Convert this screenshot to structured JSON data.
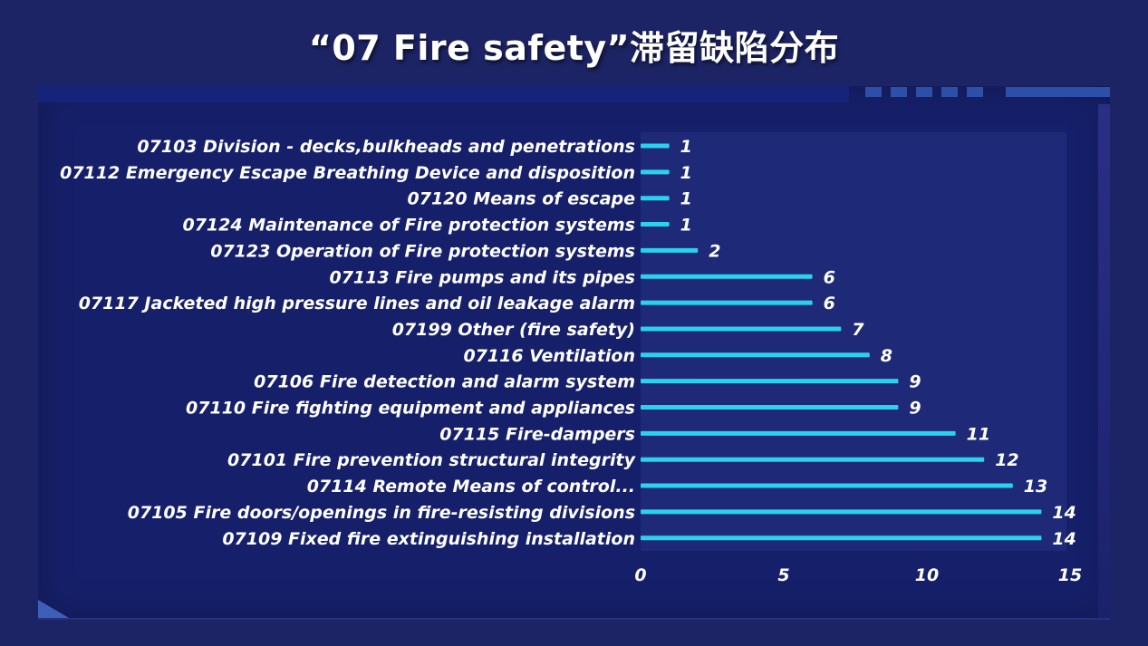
{
  "page": {
    "title": "“07 Fire safety”滞留缺陷分布"
  },
  "colors": {
    "background": "#1d2465",
    "bar": "#2ad2f0",
    "text": "#ffffff"
  },
  "chart_data": {
    "type": "bar",
    "orientation": "horizontal",
    "title": "“07 Fire safety”滞留缺陷分布",
    "categories": [
      "07103 Division - decks,bulkheads and penetrations",
      "07112 Emergency Escape Breathing Device and disposition",
      "07120 Means of escape",
      "07124 Maintenance of Fire protection systems",
      "07123 Operation of Fire protection systems",
      "07113 Fire pumps and its pipes",
      "07117 Jacketed high pressure lines and oil leakage alarm",
      "07199 Other (fire safety)",
      "07116 Ventilation",
      "07106 Fire detection and alarm system",
      "07110 Fire fighting equipment and appliances",
      "07115 Fire-dampers",
      "07101 Fire prevention structural integrity",
      "07114 Remote Means of control...",
      "07105 Fire doors/openings in fire-resisting divisions",
      "07109 Fixed fire extinguishing installation"
    ],
    "values": [
      1,
      1,
      1,
      1,
      2,
      6,
      6,
      7,
      8,
      9,
      9,
      11,
      12,
      13,
      14,
      14
    ],
    "xlim": [
      0,
      15
    ],
    "xticks": [
      "0",
      "5",
      "10",
      "15"
    ],
    "grid": false,
    "legend": "none",
    "data_labels": true
  }
}
